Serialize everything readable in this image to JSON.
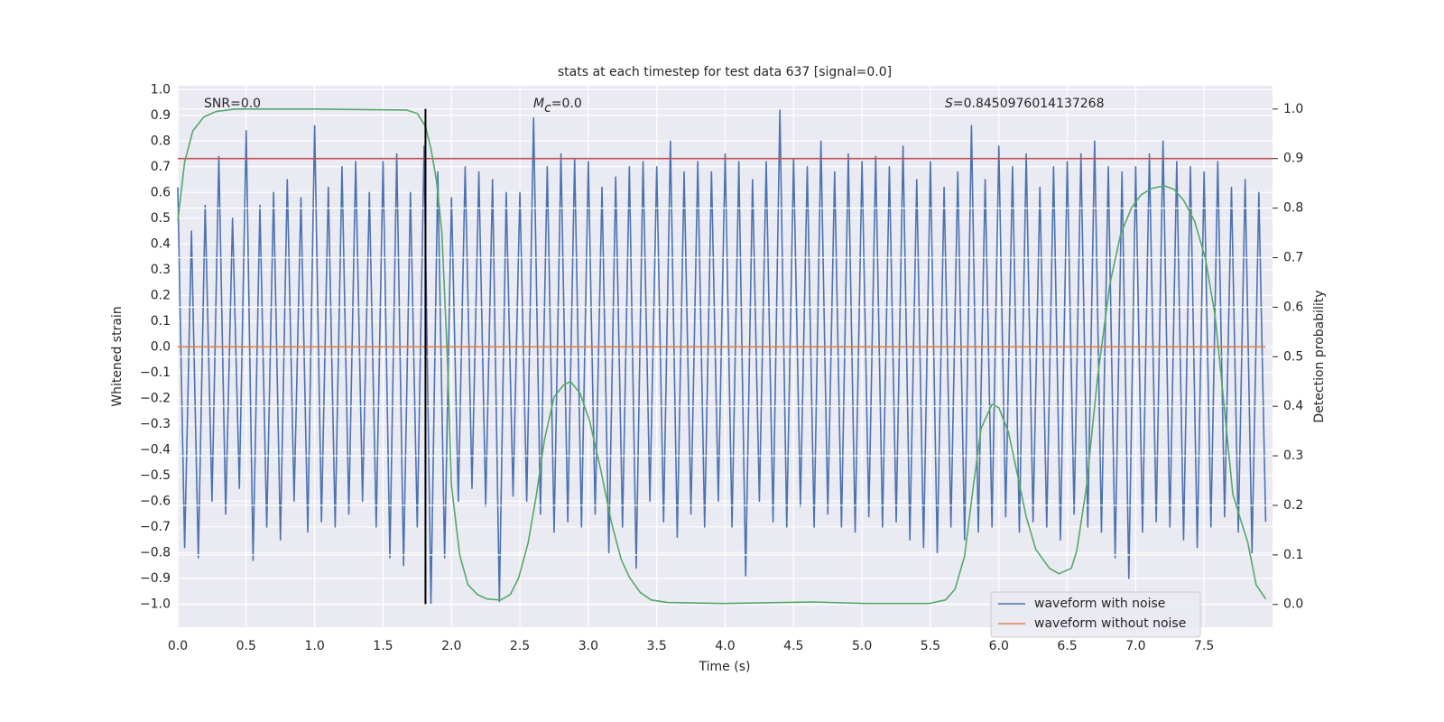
{
  "chart_data": {
    "type": "line",
    "title": "stats at each timestep for test data 637 [signal=0.0]",
    "xlabel": "Time (s)",
    "ylabel": "Whitened strain",
    "y2label": "Detection probability",
    "annotations": {
      "snr": "SNR=0.0",
      "mc": {
        "symbol": "M",
        "sub": "c",
        "rest": "=0.0"
      },
      "s": {
        "symbol": "S",
        "rest": "=0.8450976014137268"
      }
    },
    "xlim": [
      0,
      8.0
    ],
    "ylim": [
      -1.09,
      1.015
    ],
    "y2lim": [
      -0.046,
      1.047
    ],
    "grid": true,
    "legend": "lower right",
    "xticks": [
      {
        "value": 0,
        "label": "0.0"
      },
      {
        "value": 0.5,
        "label": "0.5"
      },
      {
        "value": 1,
        "label": "1.0"
      },
      {
        "value": 1.5,
        "label": "1.5"
      },
      {
        "value": 2,
        "label": "2.0"
      },
      {
        "value": 2.5,
        "label": "2.5"
      },
      {
        "value": 3,
        "label": "3.0"
      },
      {
        "value": 3.5,
        "label": "3.5"
      },
      {
        "value": 4,
        "label": "4.0"
      },
      {
        "value": 4.5,
        "label": "4.5"
      },
      {
        "value": 5,
        "label": "5.0"
      },
      {
        "value": 5.5,
        "label": "5.5"
      },
      {
        "value": 6,
        "label": "6.0"
      },
      {
        "value": 6.5,
        "label": "6.5"
      },
      {
        "value": 7,
        "label": "7.0"
      },
      {
        "value": 7.5,
        "label": "7.5"
      }
    ],
    "yticks": [
      {
        "value": -1,
        "label": "−1.0"
      },
      {
        "value": -0.9,
        "label": "−0.9"
      },
      {
        "value": -0.8,
        "label": "−0.8"
      },
      {
        "value": -0.7,
        "label": "−0.7"
      },
      {
        "value": -0.6,
        "label": "−0.6"
      },
      {
        "value": -0.5,
        "label": "−0.5"
      },
      {
        "value": -0.4,
        "label": "−0.4"
      },
      {
        "value": -0.3,
        "label": "−0.3"
      },
      {
        "value": -0.2,
        "label": "−0.2"
      },
      {
        "value": -0.1,
        "label": "−0.1"
      },
      {
        "value": 0,
        "label": "0.0"
      },
      {
        "value": 0.1,
        "label": "0.1"
      },
      {
        "value": 0.2,
        "label": "0.2"
      },
      {
        "value": 0.3,
        "label": "0.3"
      },
      {
        "value": 0.4,
        "label": "0.4"
      },
      {
        "value": 0.5,
        "label": "0.5"
      },
      {
        "value": 0.6,
        "label": "0.6"
      },
      {
        "value": 0.7,
        "label": "0.7"
      },
      {
        "value": 0.8,
        "label": "0.8"
      },
      {
        "value": 0.9,
        "label": "0.9"
      },
      {
        "value": 1,
        "label": "1.0"
      }
    ],
    "y2ticks": [
      {
        "value": 0,
        "label": "0.0"
      },
      {
        "value": 0.1,
        "label": "0.1"
      },
      {
        "value": 0.2,
        "label": "0.2"
      },
      {
        "value": 0.3,
        "label": "0.3"
      },
      {
        "value": 0.4,
        "label": "0.4"
      },
      {
        "value": 0.5,
        "label": "0.5"
      },
      {
        "value": 0.6,
        "label": "0.6"
      },
      {
        "value": 0.7,
        "label": "0.7"
      },
      {
        "value": 0.8,
        "label": "0.8"
      },
      {
        "value": 0.9,
        "label": "0.9"
      },
      {
        "value": 1,
        "label": "1.0"
      }
    ],
    "series": [
      {
        "name": "waveform with noise",
        "color": "#4c72b0",
        "x": [
          0,
          0.05,
          0.1,
          0.15,
          0.2,
          0.25,
          0.3,
          0.35,
          0.4,
          0.45,
          0.5,
          0.55,
          0.6,
          0.65,
          0.7,
          0.75,
          0.8,
          0.85,
          0.9,
          0.95,
          1,
          1.05,
          1.1,
          1.15,
          1.2,
          1.25,
          1.3,
          1.35,
          1.4,
          1.45,
          1.5,
          1.55,
          1.6,
          1.65,
          1.7,
          1.75,
          1.8,
          1.85,
          1.9,
          1.95,
          2,
          2.05,
          2.1,
          2.15,
          2.2,
          2.25,
          2.3,
          2.35,
          2.4,
          2.45,
          2.5,
          2.55,
          2.6,
          2.65,
          2.7,
          2.75,
          2.8,
          2.85,
          2.9,
          2.95,
          3,
          3.05,
          3.1,
          3.15,
          3.2,
          3.25,
          3.3,
          3.35,
          3.4,
          3.45,
          3.5,
          3.55,
          3.6,
          3.65,
          3.7,
          3.75,
          3.8,
          3.85,
          3.9,
          3.95,
          4,
          4.05,
          4.1,
          4.15,
          4.2,
          4.25,
          4.3,
          4.35,
          4.4,
          4.45,
          4.5,
          4.55,
          4.6,
          4.65,
          4.7,
          4.75,
          4.8,
          4.85,
          4.9,
          4.95,
          5,
          5.05,
          5.1,
          5.15,
          5.2,
          5.25,
          5.3,
          5.35,
          5.4,
          5.45,
          5.5,
          5.55,
          5.6,
          5.65,
          5.7,
          5.75,
          5.8,
          5.85,
          5.9,
          5.95,
          6,
          6.05,
          6.1,
          6.15,
          6.2,
          6.25,
          6.3,
          6.35,
          6.4,
          6.45,
          6.5,
          6.55,
          6.6,
          6.65,
          6.7,
          6.75,
          6.8,
          6.85,
          6.9,
          6.95,
          7,
          7.05,
          7.1,
          7.15,
          7.2,
          7.25,
          7.3,
          7.35,
          7.4,
          7.45,
          7.5,
          7.55,
          7.6,
          7.65,
          7.7,
          7.75,
          7.8,
          7.85,
          7.9,
          7.95
        ],
        "values": [
          0.62,
          -0.78,
          0.45,
          -0.82,
          0.55,
          -0.6,
          0.74,
          -0.65,
          0.5,
          -0.55,
          0.84,
          -0.83,
          0.55,
          -0.7,
          0.6,
          -0.75,
          0.65,
          -0.6,
          0.58,
          -0.72,
          0.86,
          -0.68,
          0.62,
          -0.7,
          0.7,
          -0.65,
          0.72,
          -0.6,
          0.6,
          -0.7,
          0.72,
          -0.82,
          0.75,
          -0.85,
          0.6,
          -0.7,
          0.78,
          -1.0,
          0.68,
          -0.82,
          0.58,
          -0.6,
          0.7,
          -0.55,
          0.68,
          -0.62,
          0.65,
          -0.99,
          0.6,
          -0.58,
          0.6,
          -0.6,
          0.89,
          -0.65,
          0.7,
          -0.72,
          0.75,
          -0.68,
          0.73,
          -0.7,
          0.72,
          -0.65,
          0.62,
          -0.8,
          0.66,
          -0.7,
          0.7,
          -0.86,
          0.72,
          -0.6,
          0.7,
          -0.68,
          0.8,
          -0.74,
          0.68,
          -0.65,
          0.72,
          -0.7,
          0.68,
          -0.6,
          0.75,
          -0.7,
          0.72,
          -0.89,
          0.65,
          -0.6,
          0.72,
          -0.68,
          0.92,
          -0.7,
          0.73,
          -0.62,
          0.7,
          -0.7,
          0.8,
          -0.65,
          0.68,
          -0.7,
          0.75,
          -0.72,
          0.72,
          -0.66,
          0.74,
          -0.7,
          0.7,
          -0.68,
          0.78,
          -0.75,
          0.65,
          -0.78,
          0.72,
          -0.8,
          0.62,
          -0.7,
          0.68,
          -0.75,
          0.86,
          -0.72,
          0.65,
          -0.7,
          0.78,
          -0.66,
          0.7,
          -0.72,
          0.75,
          -0.68,
          0.62,
          -0.7,
          0.7,
          -0.75,
          0.72,
          -0.65,
          0.75,
          -0.7,
          0.8,
          -0.72,
          0.7,
          -0.82,
          0.68,
          -0.9,
          0.7,
          -0.72,
          0.75,
          -0.68,
          0.8,
          -0.7,
          0.72,
          -0.75,
          0.7,
          -0.78,
          0.68,
          -0.7,
          0.72,
          -0.66,
          0.62,
          -0.72,
          0.65,
          -0.8,
          0.6,
          -0.68
        ]
      },
      {
        "name": "waveform without noise",
        "color": "#dd8452",
        "x": [
          0,
          7.95
        ],
        "values": [
          0,
          0
        ]
      }
    ],
    "probability": {
      "color": "#55a868",
      "axis": "y2",
      "x": [
        0,
        0.05,
        0.11,
        0.19,
        0.28,
        0.42,
        1.0,
        1.67,
        1.75,
        1.81,
        1.85,
        1.89,
        1.93,
        1.97,
        2.0,
        2.06,
        2.12,
        2.19,
        2.26,
        2.36,
        2.43,
        2.49,
        2.56,
        2.62,
        2.68,
        2.75,
        2.82,
        2.87,
        2.94,
        3.01,
        3.09,
        3.17,
        3.24,
        3.3,
        3.38,
        3.46,
        3.58,
        3.98,
        4.64,
        5.03,
        5.49,
        5.61,
        5.68,
        5.75,
        5.81,
        5.87,
        5.95,
        6.0,
        6.07,
        6.13,
        6.2,
        6.27,
        6.37,
        6.44,
        6.53,
        6.57,
        6.64,
        6.72,
        6.81,
        6.89,
        6.97,
        7.04,
        7.12,
        7.21,
        7.28,
        7.35,
        7.43,
        7.51,
        7.58,
        7.64,
        7.71,
        7.82,
        7.88,
        7.95
      ],
      "values": [
        0.774,
        0.893,
        0.956,
        0.984,
        0.995,
        1.0,
        1.0,
        0.998,
        0.991,
        0.965,
        0.92,
        0.856,
        0.75,
        0.5,
        0.24,
        0.1,
        0.04,
        0.02,
        0.011,
        0.009,
        0.02,
        0.053,
        0.124,
        0.22,
        0.333,
        0.419,
        0.443,
        0.45,
        0.426,
        0.37,
        0.273,
        0.164,
        0.091,
        0.055,
        0.024,
        0.009,
        0.004,
        0.002,
        0.005,
        0.002,
        0.002,
        0.009,
        0.031,
        0.098,
        0.231,
        0.355,
        0.404,
        0.397,
        0.348,
        0.27,
        0.177,
        0.111,
        0.073,
        0.062,
        0.073,
        0.109,
        0.237,
        0.455,
        0.645,
        0.747,
        0.801,
        0.827,
        0.84,
        0.845,
        0.838,
        0.816,
        0.774,
        0.698,
        0.583,
        0.419,
        0.222,
        0.124,
        0.04,
        0.011
      ]
    },
    "threshold": {
      "value": 0.9,
      "axis": "y2",
      "color": "#c44e52"
    },
    "marker_line": {
      "x": 1.81,
      "color": "#000000"
    }
  }
}
